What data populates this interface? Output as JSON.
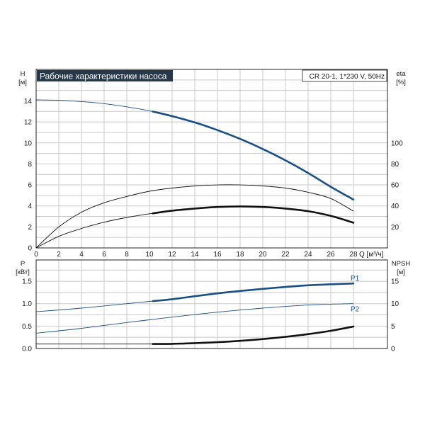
{
  "chart_data": [
    {
      "type": "line",
      "title": "Рабочие характеристики насоса",
      "subtitle": "CR 20-1, 1*230 V, 50Hz",
      "xlabel": "Q [м³/ч]",
      "ylabel": "H",
      "ylabel_unit": "[м]",
      "y2label": "eta",
      "y2label_unit": "[%]",
      "xlim": [
        0,
        31
      ],
      "ylim": [
        0,
        17
      ],
      "y2lim": [
        0,
        170
      ],
      "x_ticks": [
        "0",
        "2",
        "4",
        "6",
        "8",
        "10",
        "12",
        "14",
        "16",
        "18",
        "20",
        "22",
        "24",
        "26",
        "28"
      ],
      "x_unit_tick": "Q [м³/ч]",
      "y_ticks": [
        "0",
        "2",
        "4",
        "6",
        "8",
        "10",
        "12",
        "14"
      ],
      "y2_ticks": [
        "0",
        "20",
        "40",
        "60",
        "80",
        "100"
      ],
      "grid": true,
      "series": [
        {
          "axis": "left",
          "color": "#1a4f85",
          "x": [
            0,
            2,
            4,
            6,
            8,
            10,
            12,
            14,
            16,
            18,
            20,
            22,
            24,
            26,
            28
          ],
          "values": [
            14.1,
            14.06,
            13.94,
            13.74,
            13.44,
            13.06,
            12.55,
            11.95,
            11.22,
            10.38,
            9.42,
            8.34,
            7.14,
            5.82,
            4.6
          ],
          "bold_from": 10.3
        },
        {
          "axis": "right",
          "color": "#111111",
          "x": [
            0,
            2,
            4,
            6,
            8,
            10,
            12,
            14,
            16,
            18,
            20,
            22,
            24,
            26,
            28
          ],
          "values": [
            0,
            20,
            34,
            43,
            49,
            54,
            57,
            59,
            60,
            60,
            59,
            57,
            53,
            47,
            35
          ],
          "bold_from": 99
        },
        {
          "axis": "right",
          "color": "#111111",
          "x": [
            0,
            2,
            4,
            6,
            8,
            10,
            12,
            14,
            16,
            18,
            20,
            22,
            24,
            26,
            28
          ],
          "values": [
            0,
            11,
            18.5,
            24.5,
            29,
            32.5,
            35.5,
            37.5,
            39,
            39.5,
            39,
            37.5,
            35,
            30.5,
            24
          ],
          "bold_from": 10.3
        }
      ]
    },
    {
      "type": "line",
      "ylabel": "P",
      "ylabel_unit": "[кВт]",
      "y2label": "NPSH",
      "y2label_unit": "[м]",
      "xlim": [
        0,
        31
      ],
      "ylim": [
        0,
        1.975
      ],
      "y2lim": [
        0,
        19.75
      ],
      "y_ticks": [
        "0.0",
        "0.5",
        "1.0",
        "1.5"
      ],
      "y2_ticks": [
        "0",
        "5",
        "10",
        "15"
      ],
      "grid": true,
      "series": [
        {
          "name": "P1",
          "axis": "left",
          "color": "#1a4f85",
          "x": [
            0,
            4,
            8,
            10,
            12,
            16,
            20,
            24,
            28
          ],
          "values": [
            0.82,
            0.9,
            1.0,
            1.05,
            1.1,
            1.23,
            1.33,
            1.41,
            1.45
          ],
          "bold_from": 10.3
        },
        {
          "name": "P2",
          "axis": "left",
          "color": "#1a4f85",
          "x": [
            0,
            4,
            8,
            10,
            12,
            16,
            20,
            24,
            28
          ],
          "values": [
            0.34,
            0.45,
            0.58,
            0.64,
            0.7,
            0.81,
            0.9,
            0.97,
            1.0
          ],
          "bold_from": 99
        },
        {
          "axis": "right",
          "color": "#111111",
          "x": [
            0,
            4,
            8,
            10,
            12,
            14,
            16,
            18,
            20,
            22,
            24,
            26,
            28
          ],
          "values": [
            1,
            1,
            1,
            1,
            1.05,
            1.2,
            1.4,
            1.7,
            2.1,
            2.6,
            3.2,
            3.95,
            4.9
          ],
          "bold_from": 10.3
        }
      ]
    }
  ]
}
